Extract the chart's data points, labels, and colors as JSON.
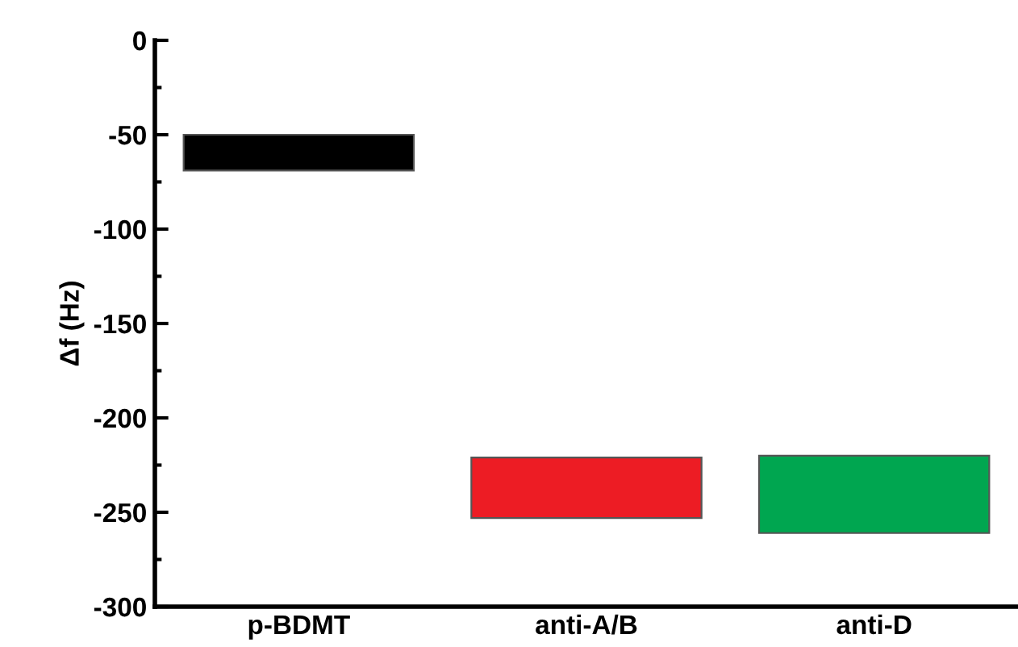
{
  "chart_data": {
    "type": "bar",
    "ylabel": "Δf (Hz)",
    "categories": [
      "p-BDMT",
      "anti-A/B",
      "anti-D"
    ],
    "base": [
      -50,
      -221,
      -220
    ],
    "values": [
      -19,
      -32,
      -41
    ],
    "colors": [
      "#000000",
      "#ed1c24",
      "#00a650"
    ],
    "ylim": [
      -300,
      0
    ],
    "yticks": [
      -300,
      -250,
      -200,
      -150,
      -100,
      -50,
      0
    ],
    "grid": false
  }
}
